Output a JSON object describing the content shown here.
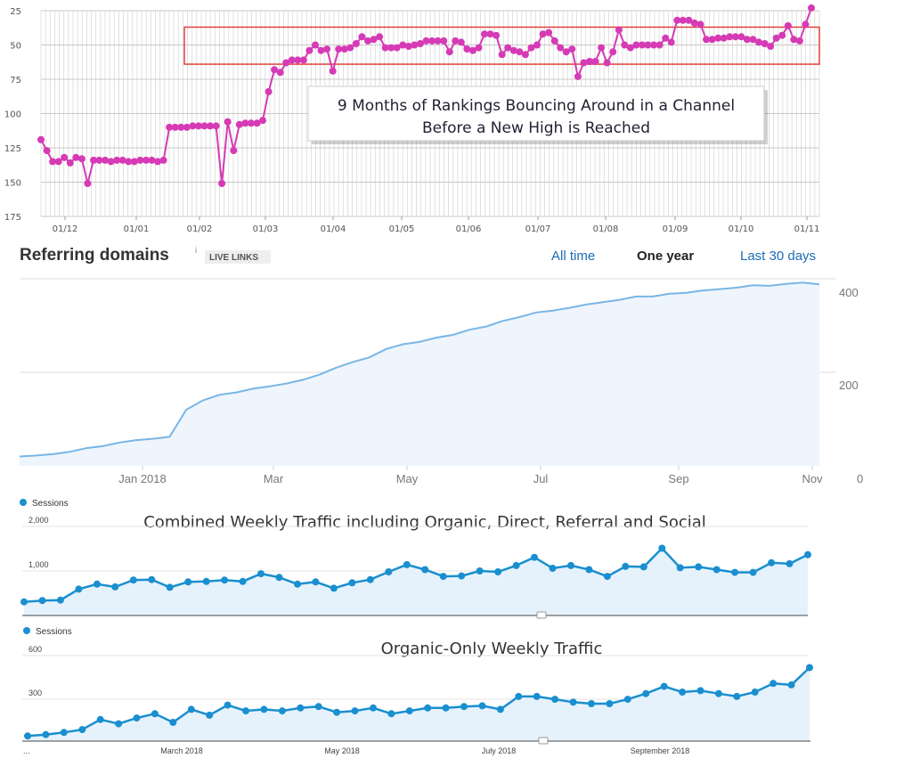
{
  "chart_data": [
    {
      "type": "line",
      "ylim": [
        25,
        175
      ],
      "y_ticks": [
        "25",
        "50",
        "75",
        "100",
        "125",
        "150",
        "175"
      ],
      "x_ticks": [
        "01/12",
        "01/01",
        "01/02",
        "01/03",
        "01/04",
        "01/05",
        "01/06",
        "01/07",
        "01/08",
        "01/09",
        "01/10",
        "01/11"
      ],
      "line_color": "#d63ab5",
      "highlight_box": {
        "y_from": 37,
        "y_to": 64,
        "color": "#e0413a"
      },
      "annotation": [
        "9 Months of Rankings Bouncing Around in a Channel",
        "Before a New High is Reached"
      ],
      "series": [
        {
          "values": [
            119,
            127,
            135,
            135,
            132,
            136,
            132,
            133,
            151,
            134,
            134,
            134,
            135,
            134,
            134,
            135,
            135,
            134,
            134,
            134,
            135,
            134,
            110,
            110,
            110,
            110,
            109,
            109,
            109,
            109,
            109,
            151,
            106,
            127,
            108,
            107,
            107,
            107,
            105,
            84,
            68,
            70,
            63,
            61,
            61,
            61,
            54,
            50,
            54,
            53,
            69,
            53,
            53,
            52,
            49,
            44,
            47,
            46,
            44,
            52,
            52,
            52,
            50,
            51,
            50,
            49,
            47,
            47,
            47,
            47,
            55,
            47,
            48,
            53,
            54,
            52,
            42,
            42,
            43,
            57,
            52,
            54,
            55,
            57,
            52,
            50,
            42,
            41,
            47,
            52,
            55,
            53,
            73,
            63,
            62,
            62,
            52,
            63,
            55,
            39,
            50,
            52,
            50,
            50,
            50,
            50,
            50,
            45,
            48,
            32,
            32,
            32,
            34,
            35,
            46,
            46,
            45,
            45,
            44,
            44,
            44,
            46,
            46,
            48,
            49,
            51,
            45,
            43,
            36,
            46,
            47,
            35,
            23
          ]
        }
      ]
    },
    {
      "type": "area",
      "title": "Referring domains",
      "badge": "LIVE LINKS",
      "info_mark": "i",
      "y_ticks": [
        "400",
        "200",
        "0"
      ],
      "x_ticks": [
        "Jan 2018",
        "Mar",
        "May",
        "Jul",
        "Sep",
        "Nov"
      ],
      "ylim": [
        0,
        400
      ],
      "line_color": "#79b6e6",
      "fill_color": "#eef5fc",
      "ranges": [
        "All time",
        "One year",
        "Last 30 days"
      ],
      "active_range": "One year",
      "series": [
        {
          "values": [
            20,
            22,
            25,
            30,
            38,
            42,
            50,
            55,
            58,
            62,
            120,
            140,
            152,
            157,
            165,
            170,
            176,
            184,
            195,
            210,
            222,
            232,
            250,
            260,
            265,
            274,
            280,
            291,
            298,
            310,
            318,
            328,
            332,
            338,
            345,
            350,
            355,
            362,
            362,
            368,
            370,
            375,
            378,
            381,
            386,
            385,
            389,
            392,
            388
          ]
        }
      ]
    },
    {
      "type": "area",
      "title": "Combined Weekly Traffic including Organic, Direct, Referral and Social",
      "legend": "Sessions",
      "y_ticks": [
        "2,000",
        "1,000"
      ],
      "ylim": [
        0,
        2000
      ],
      "line_color": "#1a8fcf",
      "fill_color": "#e6f2fb",
      "series": [
        {
          "name": "Sessions",
          "values": [
            300,
            330,
            340,
            580,
            690,
            630,
            780,
            790,
            620,
            740,
            750,
            780,
            750,
            920,
            840,
            690,
            740,
            600,
            720,
            790,
            960,
            1120,
            1010,
            860,
            870,
            980,
            960,
            1100,
            1280,
            1040,
            1100,
            1010,
            860,
            1080,
            1070,
            1480,
            1050,
            1070,
            1010,
            950,
            950,
            1160,
            1140,
            1340
          ]
        }
      ]
    },
    {
      "type": "area",
      "title": "Organic-Only Weekly Traffic",
      "legend": "Sessions",
      "y_ticks": [
        "600",
        "300"
      ],
      "x_ticks": [
        "...",
        "March 2018",
        "May 2018",
        "July 2018",
        "September 2018"
      ],
      "ylim": [
        0,
        600
      ],
      "line_color": "#1a8fcf",
      "fill_color": "#e6f2fb",
      "series": [
        {
          "name": "Sessions",
          "values": [
            35,
            45,
            60,
            80,
            150,
            120,
            160,
            190,
            130,
            220,
            180,
            250,
            210,
            220,
            210,
            230,
            240,
            200,
            210,
            230,
            190,
            210,
            230,
            230,
            240,
            245,
            220,
            310,
            310,
            290,
            270,
            260,
            260,
            290,
            330,
            380,
            340,
            350,
            330,
            310,
            340,
            400,
            390,
            510
          ]
        }
      ]
    }
  ]
}
